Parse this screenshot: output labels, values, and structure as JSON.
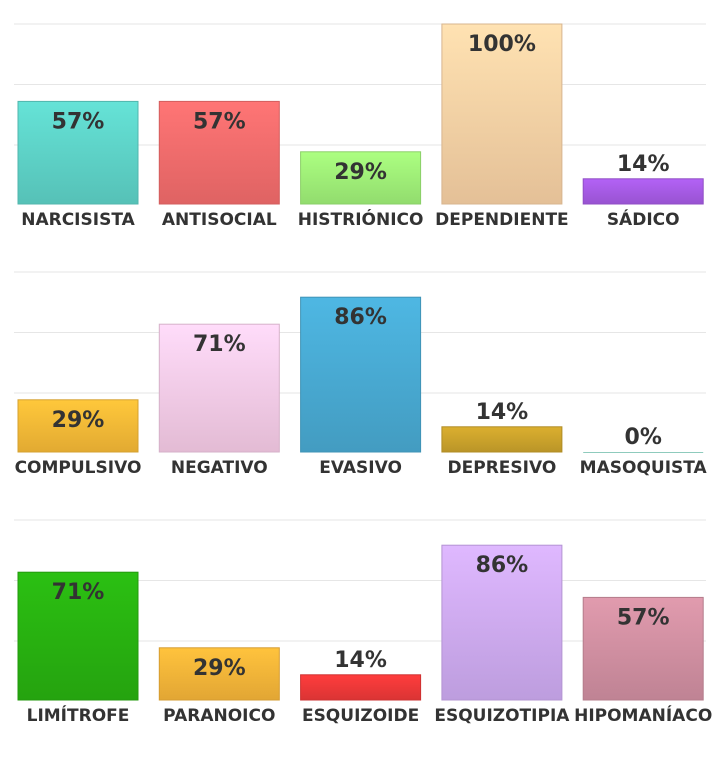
{
  "chart_data": [
    {
      "type": "bar",
      "categories": [
        "NARCISISTA",
        "ANTISOCIAL",
        "HISTRIÓNICO",
        "DEPENDIENTE",
        "SÁDICO"
      ],
      "values": [
        57,
        57,
        29,
        100,
        14
      ],
      "labels": [
        "57%",
        "57%",
        "29%",
        "100%",
        "14%"
      ],
      "colors": [
        "#5fd6cb",
        "#f86e6e",
        "#a2f47a",
        "#fdd5a8",
        "#a95ce8"
      ],
      "ylim": [
        0,
        100
      ],
      "grid": true
    },
    {
      "type": "bar",
      "categories": [
        "COMPULSIVO",
        "NEGATIVO",
        "EVASIVO",
        "DEPRESIVO",
        "MASOQUISTA"
      ],
      "values": [
        29,
        71,
        86,
        14,
        0
      ],
      "labels": [
        "29%",
        "71%",
        "86%",
        "14%",
        "0%"
      ],
      "colors": [
        "#fbbd38",
        "#fcd0ec",
        "#4aadd6",
        "#cfa52c",
        "#8fcbbd"
      ],
      "ylim": [
        0,
        100
      ],
      "grid": true
    },
    {
      "type": "bar",
      "categories": [
        "LIMÍTROFE",
        "PARANOICO",
        "ESQUIZOIDE",
        "ESQUIZOTIPIA",
        "HIPOMANÍACO"
      ],
      "values": [
        71,
        29,
        14,
        86,
        57
      ],
      "labels": [
        "71%",
        "29%",
        "14%",
        "86%",
        "57%"
      ],
      "colors": [
        "#29b511",
        "#fbb83a",
        "#f23a3a",
        "#d2aef7",
        "#d492a4"
      ],
      "ylim": [
        0,
        100
      ],
      "grid": true
    }
  ]
}
